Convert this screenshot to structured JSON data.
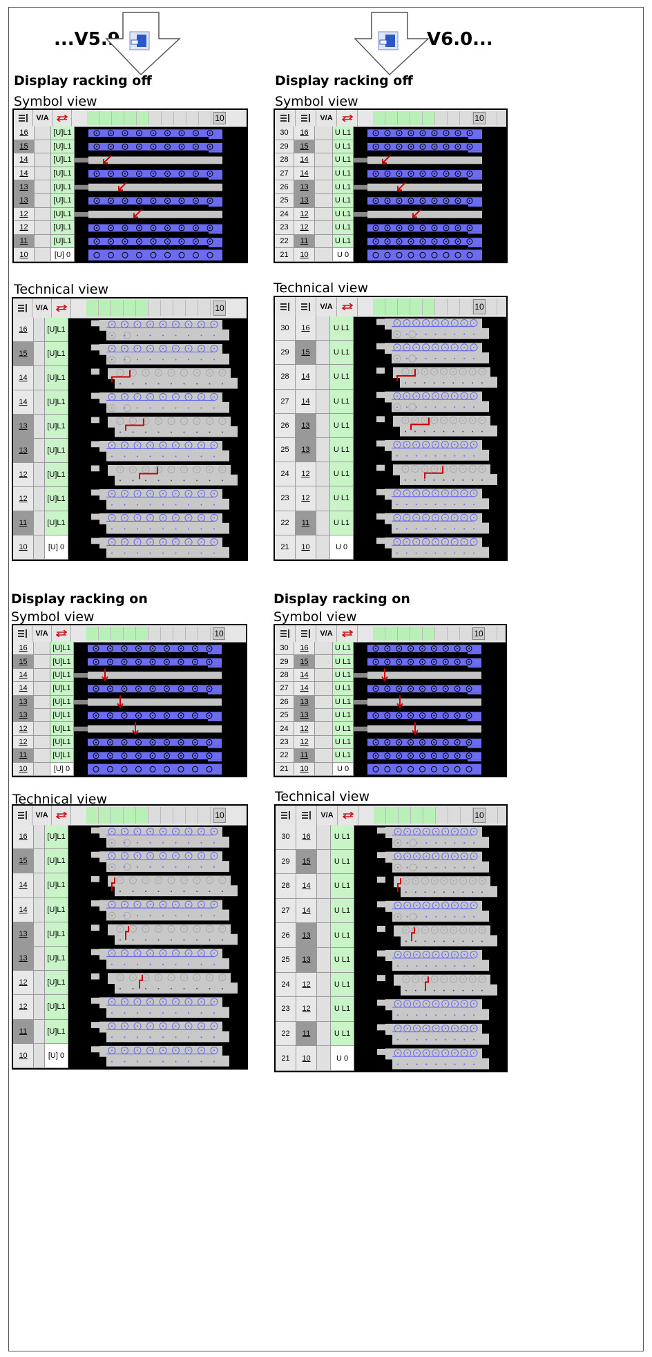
{
  "versions": {
    "left": "...V5.9",
    "right": "V6.0..."
  },
  "sections": {
    "off": "Display racking off",
    "on": "Display racking on"
  },
  "views": {
    "symbol": "Symbol view",
    "technical": "Technical view"
  },
  "toolbar": {
    "via_label": "V/A",
    "zoom_value": "10"
  },
  "left_rows": [
    {
      "num": "16",
      "mod": "[U]L1",
      "dark": false
    },
    {
      "num": "15",
      "mod": "[U]L1",
      "dark": true
    },
    {
      "num": "14",
      "mod": "[U]L1",
      "dark": false
    },
    {
      "num": "14",
      "mod": "[U]L1",
      "dark": false
    },
    {
      "num": "13",
      "mod": "[U]L1",
      "dark": true
    },
    {
      "num": "13",
      "mod": "[U]L1",
      "dark": true
    },
    {
      "num": "12",
      "mod": "[U]L1",
      "dark": false
    },
    {
      "num": "12",
      "mod": "[U]L1",
      "dark": false
    },
    {
      "num": "11",
      "mod": "[U]L1",
      "dark": true
    },
    {
      "num": "10",
      "mod": "[U] 0",
      "dark": false
    }
  ],
  "right_rows": [
    {
      "rack": "30",
      "num": "16",
      "mod": "U L1",
      "dark": false
    },
    {
      "rack": "29",
      "num": "15",
      "mod": "U L1",
      "dark": true
    },
    {
      "rack": "28",
      "num": "14",
      "mod": "U L1",
      "dark": false
    },
    {
      "rack": "27",
      "num": "14",
      "mod": "U L1",
      "dark": false
    },
    {
      "rack": "26",
      "num": "13",
      "mod": "U L1",
      "dark": true
    },
    {
      "rack": "25",
      "num": "13",
      "mod": "U L1",
      "dark": true
    },
    {
      "rack": "24",
      "num": "12",
      "mod": "U L1",
      "dark": false
    },
    {
      "rack": "23",
      "num": "12",
      "mod": "U L1",
      "dark": false
    },
    {
      "rack": "22",
      "num": "11",
      "mod": "U L1",
      "dark": true
    },
    {
      "rack": "21",
      "num": "10",
      "mod": "U 0",
      "dark": false
    }
  ],
  "colors": {
    "green": "#c8f4c8",
    "blue_bar": "#6c6cf0",
    "grey_bar": "#c4c4c4",
    "red_arrow": "#cc0000"
  },
  "icons": [
    "download-arrow-icon",
    "module-icon",
    "list-config-icon",
    "swap-arrows-icon"
  ]
}
